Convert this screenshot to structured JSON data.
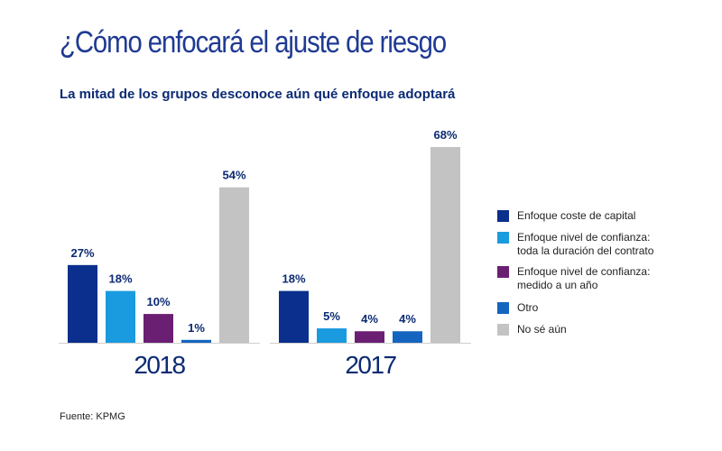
{
  "title": "¿Cómo enfocará el ajuste de riesgo",
  "subtitle": "La mitad de los grupos desconoce aún qué enfoque adoptará",
  "source": "Fuente: KPMG",
  "chart_data": {
    "type": "bar",
    "groups": [
      "2018",
      "2017"
    ],
    "series": [
      {
        "name": "Enfoque coste de capital",
        "color": "#0a2f8c",
        "values": [
          27,
          18
        ]
      },
      {
        "name": "Enfoque nivel de confianza:\ntoda la duración del contrato",
        "color": "#1a9be0",
        "values": [
          18,
          5
        ]
      },
      {
        "name": "Enfoque nivel de confianza:\nmedido a un año",
        "color": "#6b1f73",
        "values": [
          10,
          4
        ]
      },
      {
        "name": "Otro",
        "color": "#1565c0",
        "values": [
          1,
          4
        ]
      },
      {
        "name": "No sé aún",
        "color": "#c3c3c3",
        "values": [
          54,
          68
        ]
      }
    ],
    "data_labels": [
      [
        "27%",
        "18%",
        "10%",
        "1%",
        "54%"
      ],
      [
        "18%",
        "5%",
        "4%",
        "4%",
        "68%"
      ]
    ],
    "unit": "%",
    "ylim": [
      0,
      68
    ],
    "grid": false,
    "legend_position": "right"
  }
}
